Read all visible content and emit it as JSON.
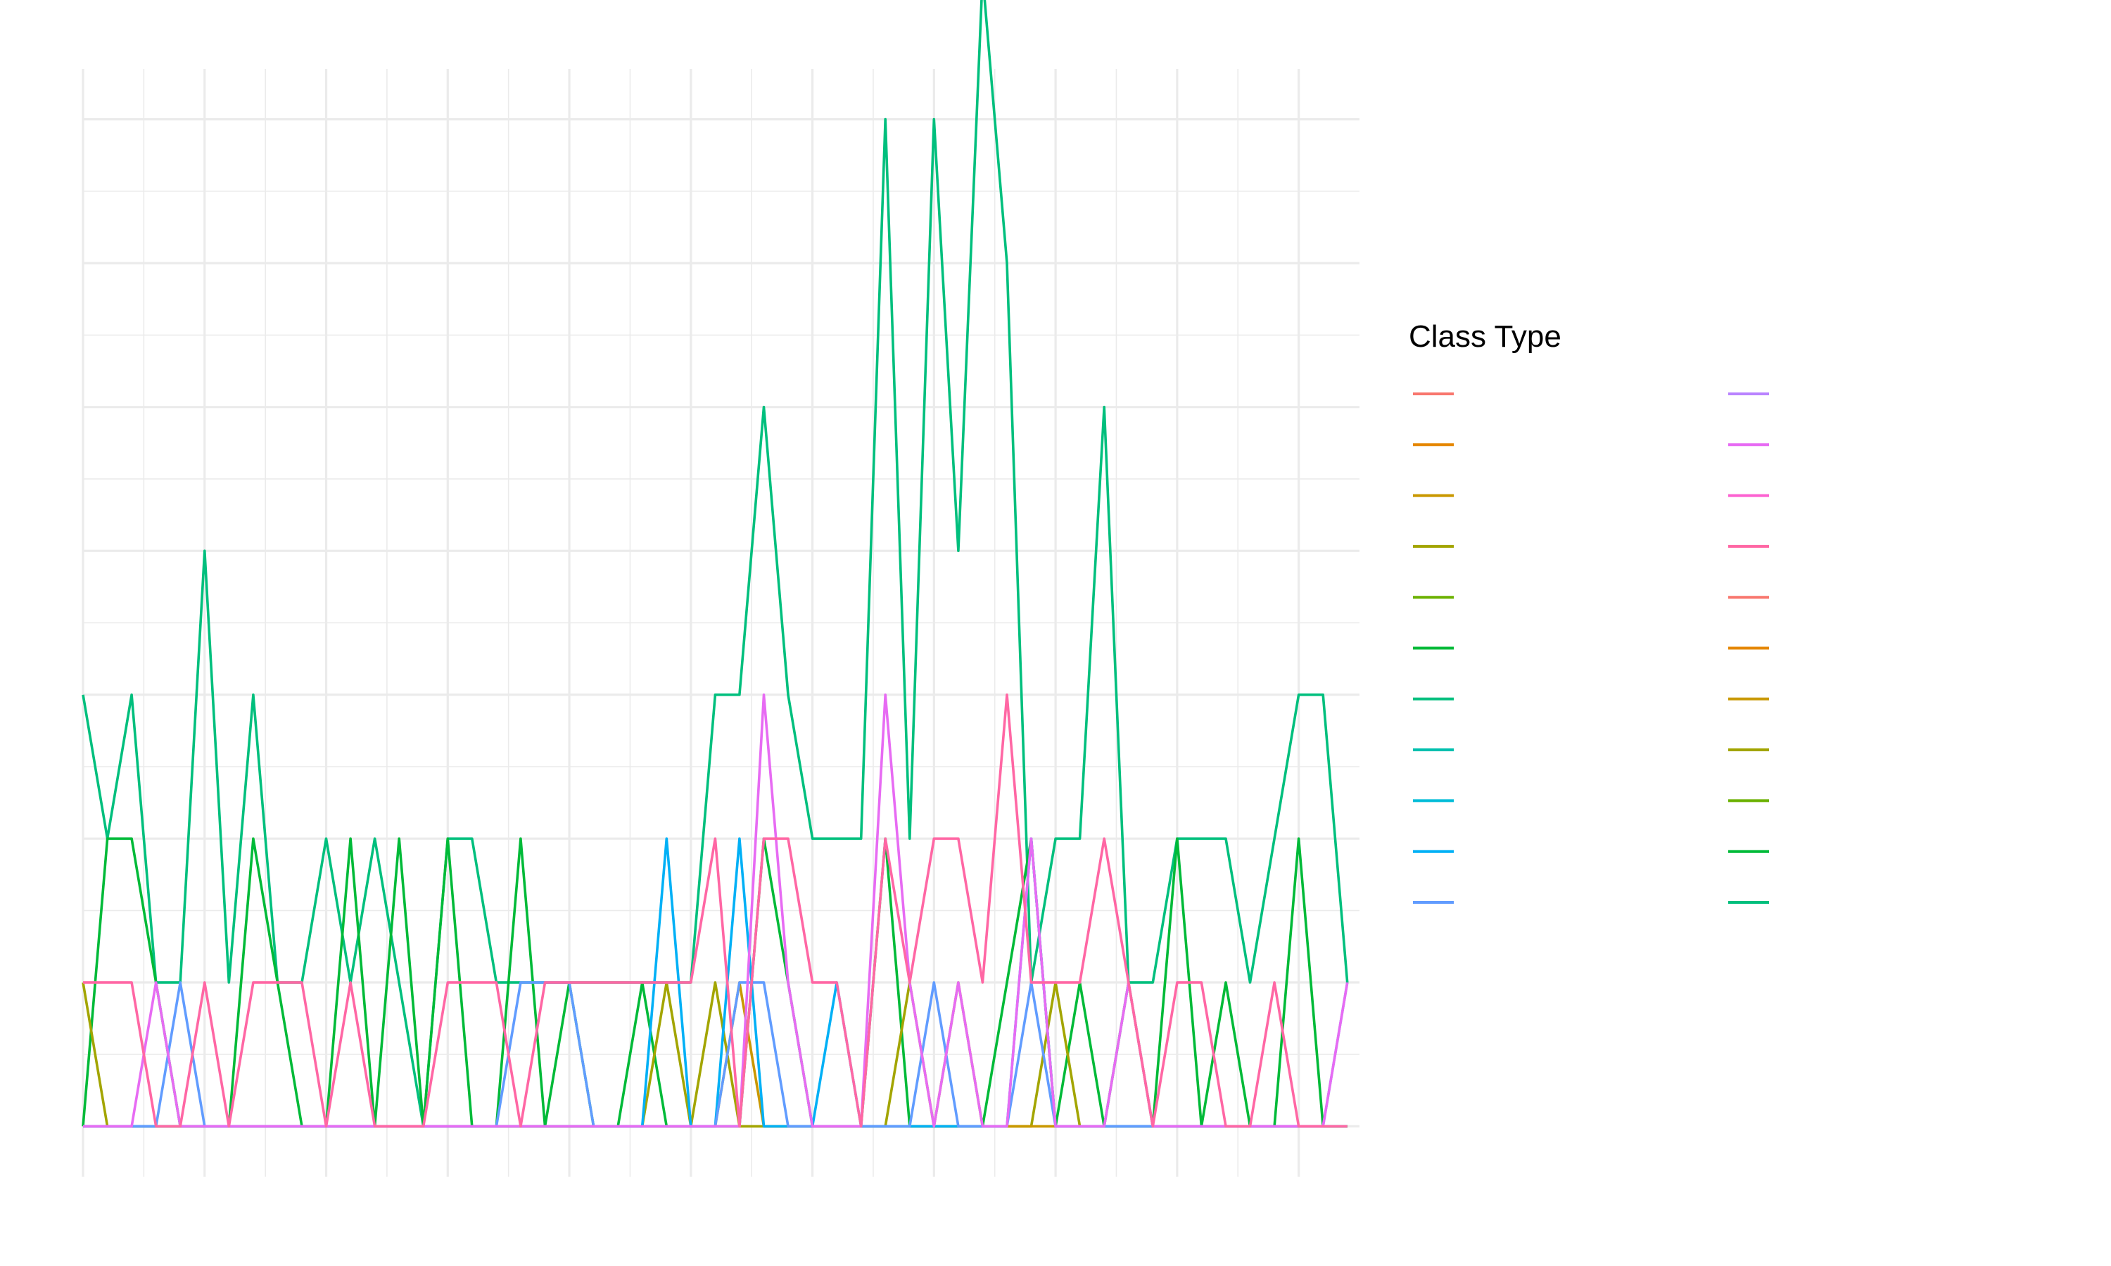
{
  "chart_data": {
    "type": "line",
    "title": "",
    "xlabel": "",
    "ylabel": "",
    "xlim": [
      0,
      105
    ],
    "ylim": [
      -0.35,
      7.35
    ],
    "grid": true,
    "legend": {
      "title": "Class Type",
      "placement": "right",
      "columns": 2,
      "entries": [
        {
          "name": "",
          "color": "#F8766D"
        },
        {
          "name": "",
          "color": "#E58700"
        },
        {
          "name": "",
          "color": "#C99800"
        },
        {
          "name": "",
          "color": "#A3A500"
        },
        {
          "name": "",
          "color": "#6BB100"
        },
        {
          "name": "",
          "color": "#00BA38"
        },
        {
          "name": "",
          "color": "#00BF7D"
        },
        {
          "name": "",
          "color": "#00C0AF"
        },
        {
          "name": "",
          "color": "#00BCD8"
        },
        {
          "name": "",
          "color": "#00B0F6"
        },
        {
          "name": "",
          "color": "#619CFF"
        },
        {
          "name": "",
          "color": "#B983FF"
        },
        {
          "name": "",
          "color": "#E76BF3"
        },
        {
          "name": "",
          "color": "#FD61D1"
        },
        {
          "name": "",
          "color": "#FF67A4"
        },
        {
          "name": "",
          "color": "#F8766D"
        },
        {
          "name": "",
          "color": "#E58700"
        },
        {
          "name": "",
          "color": "#C99800"
        },
        {
          "name": "",
          "color": "#A3A500"
        },
        {
          "name": "",
          "color": "#6BB100"
        },
        {
          "name": "",
          "color": "#00BA38"
        },
        {
          "name": "",
          "color": "#00BF7D"
        }
      ]
    },
    "series": [
      {
        "name": "",
        "color": "#00BF7D",
        "x": [
          0,
          2,
          4,
          6,
          8,
          10,
          12,
          14,
          16,
          18,
          20,
          22,
          24,
          26,
          28,
          30,
          32,
          34,
          36,
          38,
          40,
          42,
          44,
          46,
          48,
          50,
          52,
          54,
          56,
          58,
          60,
          62,
          64,
          66,
          68,
          70,
          72,
          74,
          76,
          78,
          80,
          82,
          84,
          86,
          88,
          90,
          92,
          94,
          96,
          98,
          100,
          102,
          104
        ],
        "y": [
          3,
          2,
          3,
          1,
          1,
          4,
          1,
          3,
          1,
          1,
          2,
          1,
          2,
          1,
          0,
          2,
          2,
          1,
          1,
          1,
          1,
          1,
          1,
          1,
          1,
          1,
          3,
          3,
          5,
          3,
          2,
          2,
          2,
          7,
          2,
          7,
          4,
          8,
          6,
          1,
          2,
          2,
          5,
          1,
          1,
          2,
          2,
          2,
          1,
          2,
          3,
          3,
          1
        ]
      },
      {
        "name": "",
        "color": "#00BA38",
        "x": [
          0,
          2,
          4,
          6,
          8,
          10,
          12,
          14,
          16,
          18,
          20,
          22,
          24,
          26,
          28,
          30,
          32,
          34,
          36,
          38,
          40,
          42,
          44,
          46,
          48,
          50,
          52,
          54,
          56,
          58,
          60,
          62,
          64,
          66,
          68,
          70,
          72,
          74,
          76,
          78,
          80,
          82,
          84,
          86,
          88,
          90,
          92,
          94,
          96,
          98,
          100,
          102,
          104
        ],
        "y": [
          0,
          2,
          2,
          1,
          0,
          0,
          0,
          2,
          1,
          0,
          0,
          2,
          0,
          2,
          0,
          2,
          0,
          0,
          2,
          0,
          1,
          0,
          0,
          1,
          0,
          0,
          0,
          0,
          2,
          1,
          0,
          0,
          0,
          2,
          0,
          0,
          0,
          0,
          1,
          2,
          0,
          1,
          0,
          1,
          0,
          2,
          0,
          1,
          0,
          0,
          2,
          0,
          0
        ]
      },
      {
        "name": "",
        "color": "#A3A500",
        "x": [
          0,
          2,
          4,
          6,
          8,
          10,
          12,
          14,
          16,
          18,
          20,
          22,
          24,
          26,
          28,
          30,
          32,
          34,
          36,
          38,
          40,
          42,
          44,
          46,
          48,
          50,
          52,
          54,
          56,
          58,
          60,
          62,
          64,
          66,
          68,
          70,
          72,
          74,
          76,
          78,
          80,
          82,
          84,
          86,
          88,
          90,
          92,
          94,
          96,
          98,
          100,
          102,
          104
        ],
        "y": [
          1,
          0,
          0,
          0,
          0,
          0,
          0,
          0,
          0,
          0,
          0,
          0,
          0,
          0,
          0,
          0,
          0,
          0,
          0,
          0,
          0,
          0,
          0,
          0,
          1,
          0,
          1,
          0,
          0,
          0,
          0,
          0,
          0,
          0,
          1,
          0,
          1,
          0,
          0,
          0,
          1,
          0,
          0,
          0,
          0,
          0,
          0,
          0,
          0,
          0,
          0,
          0,
          0
        ]
      },
      {
        "name": "",
        "color": "#C99800",
        "x": [
          0,
          2,
          4,
          6,
          8,
          10,
          12,
          14,
          16,
          18,
          20,
          22,
          24,
          26,
          28,
          30,
          32,
          34,
          36,
          38,
          40,
          42,
          44,
          46,
          48,
          50,
          52,
          54,
          56,
          58,
          60,
          62,
          64,
          66,
          68,
          70,
          72,
          74,
          76,
          78,
          80,
          82,
          84,
          86,
          88,
          90,
          92,
          94,
          96,
          98,
          100,
          102,
          104
        ],
        "y": [
          0,
          0,
          0,
          0,
          0,
          0,
          0,
          0,
          0,
          0,
          0,
          0,
          0,
          0,
          0,
          0,
          0,
          0,
          0,
          0,
          0,
          0,
          0,
          0,
          0,
          0,
          0,
          1,
          0,
          0,
          0,
          0,
          0,
          0,
          0,
          0,
          0,
          0,
          0,
          0,
          0,
          0,
          0,
          0,
          0,
          0,
          0,
          0,
          0,
          0,
          0,
          0,
          0
        ]
      },
      {
        "name": "",
        "color": "#00B0F6",
        "x": [
          0,
          2,
          4,
          6,
          8,
          10,
          12,
          14,
          16,
          18,
          20,
          22,
          24,
          26,
          28,
          30,
          32,
          34,
          36,
          38,
          40,
          42,
          44,
          46,
          48,
          50,
          52,
          54,
          56,
          58,
          60,
          62,
          64,
          66,
          68,
          70,
          72,
          74,
          76,
          78,
          80,
          82,
          84,
          86,
          88,
          90,
          92,
          94,
          96,
          98,
          100,
          102,
          104
        ],
        "y": [
          0,
          0,
          0,
          0,
          0,
          0,
          0,
          0,
          0,
          0,
          0,
          0,
          0,
          0,
          0,
          0,
          0,
          0,
          0,
          0,
          0,
          0,
          0,
          0,
          2,
          0,
          0,
          2,
          0,
          0,
          0,
          1,
          0,
          0,
          0,
          0,
          0,
          0,
          0,
          2,
          0,
          0,
          0,
          0,
          0,
          0,
          0,
          0,
          0,
          0,
          0,
          0,
          0
        ]
      },
      {
        "name": "",
        "color": "#619CFF",
        "x": [
          0,
          2,
          4,
          6,
          8,
          10,
          12,
          14,
          16,
          18,
          20,
          22,
          24,
          26,
          28,
          30,
          32,
          34,
          36,
          38,
          40,
          42,
          44,
          46,
          48,
          50,
          52,
          54,
          56,
          58,
          60,
          62,
          64,
          66,
          68,
          70,
          72,
          74,
          76,
          78,
          80,
          82,
          84,
          86,
          88,
          90,
          92,
          94,
          96,
          98,
          100,
          102,
          104
        ],
        "y": [
          0,
          0,
          0,
          0,
          1,
          0,
          0,
          0,
          0,
          0,
          0,
          0,
          0,
          0,
          0,
          0,
          0,
          0,
          1,
          1,
          1,
          0,
          0,
          0,
          0,
          0,
          0,
          1,
          1,
          0,
          0,
          0,
          0,
          0,
          0,
          1,
          0,
          0,
          0,
          1,
          0,
          0,
          0,
          0,
          0,
          0,
          0,
          0,
          0,
          0,
          0,
          0,
          1
        ]
      },
      {
        "name": "",
        "color": "#E76BF3",
        "x": [
          0,
          2,
          4,
          6,
          8,
          10,
          12,
          14,
          16,
          18,
          20,
          22,
          24,
          26,
          28,
          30,
          32,
          34,
          36,
          38,
          40,
          42,
          44,
          46,
          48,
          50,
          52,
          54,
          56,
          58,
          60,
          62,
          64,
          66,
          68,
          70,
          72,
          74,
          76,
          78,
          80,
          82,
          84,
          86,
          88,
          90,
          92,
          94,
          96,
          98,
          100,
          102,
          104
        ],
        "y": [
          0,
          0,
          0,
          1,
          0,
          0,
          0,
          0,
          0,
          0,
          0,
          0,
          0,
          0,
          0,
          0,
          0,
          0,
          0,
          0,
          0,
          0,
          0,
          0,
          0,
          0,
          0,
          0,
          3,
          1,
          0,
          0,
          0,
          3,
          1,
          0,
          1,
          0,
          0,
          2,
          0,
          0,
          0,
          1,
          0,
          0,
          0,
          0,
          0,
          0,
          0,
          0,
          1
        ]
      },
      {
        "name": "",
        "color": "#FF67A4",
        "x": [
          0,
          2,
          4,
          6,
          8,
          10,
          12,
          14,
          16,
          18,
          20,
          22,
          24,
          26,
          28,
          30,
          32,
          34,
          36,
          38,
          40,
          42,
          44,
          46,
          48,
          50,
          52,
          54,
          56,
          58,
          60,
          62,
          64,
          66,
          68,
          70,
          72,
          74,
          76,
          78,
          80,
          82,
          84,
          86,
          88,
          90,
          92,
          94,
          96,
          98,
          100,
          102,
          104
        ],
        "y": [
          1,
          1,
          1,
          0,
          0,
          1,
          0,
          1,
          1,
          1,
          0,
          1,
          0,
          0,
          0,
          1,
          1,
          1,
          0,
          1,
          1,
          1,
          1,
          1,
          1,
          1,
          2,
          0,
          2,
          2,
          1,
          1,
          0,
          2,
          1,
          2,
          2,
          1,
          3,
          1,
          1,
          1,
          2,
          1,
          0,
          1,
          1,
          0,
          0,
          1,
          0,
          0,
          0
        ]
      }
    ]
  }
}
